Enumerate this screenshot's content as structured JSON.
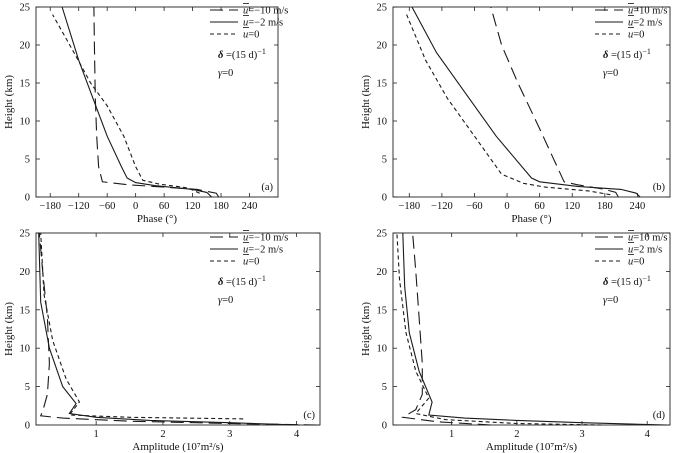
{
  "styles": {
    "line_color": "#1a1a1a",
    "dash_patterns": {
      "long-dash": "13,6",
      "solid": "",
      "short-dash": "4,3"
    }
  },
  "chart_data": [
    {
      "panel": "(a)",
      "type": "line",
      "xlabel": "Phase (°)",
      "ylabel": "Height (km)",
      "xlim": [
        -210,
        300
      ],
      "ylim": [
        0,
        25
      ],
      "xticks": [
        -180,
        -120,
        -60,
        0,
        60,
        120,
        180,
        240
      ],
      "yticks": [
        0,
        5,
        10,
        15,
        20,
        25
      ],
      "legend": [
        {
          "prefix": "u",
          "text": "=−10  m/s",
          "style": "long-dash"
        },
        {
          "prefix": "u",
          "text": "=−2  m/s",
          "style": "solid"
        },
        {
          "prefix": "u",
          "text": "=0",
          "style": "short-dash"
        }
      ],
      "params": {
        "delta": "=(15  d)",
        "delta_exp": "−1",
        "gamma": "=0"
      },
      "series": [
        {
          "style": "long-dash",
          "points": [
            [
              175,
              0
            ],
            [
              170,
              0.5
            ],
            [
              130,
              1
            ],
            [
              60,
              1.3
            ],
            [
              -15,
              1.6
            ],
            [
              -70,
              2
            ],
            [
              -78,
              4
            ],
            [
              -82,
              8
            ],
            [
              -85,
              13
            ],
            [
              -87,
              20
            ],
            [
              -88,
              25
            ]
          ]
        },
        {
          "style": "solid",
          "points": [
            [
              160,
              0
            ],
            [
              150,
              0.6
            ],
            [
              120,
              1
            ],
            [
              40,
              1.5
            ],
            [
              0,
              1.9
            ],
            [
              -18,
              2.5
            ],
            [
              -30,
              4
            ],
            [
              -60,
              8
            ],
            [
              -90,
              13
            ],
            [
              -120,
              18
            ],
            [
              -155,
              25
            ]
          ]
        },
        {
          "style": "short-dash",
          "points": [
            [
              135,
              0.5
            ],
            [
              110,
              1.2
            ],
            [
              50,
              1.7
            ],
            [
              15,
              2.2
            ],
            [
              0,
              4
            ],
            [
              -25,
              8
            ],
            [
              -60,
              12
            ],
            [
              -95,
              15
            ],
            [
              -130,
              19
            ],
            [
              -175,
              24
            ]
          ]
        }
      ]
    },
    {
      "panel": "(b)",
      "type": "line",
      "xlabel": "Phase (°)",
      "ylabel": "Height (km)",
      "xlim": [
        -210,
        300
      ],
      "ylim": [
        0,
        25
      ],
      "xticks": [
        -180,
        -120,
        -60,
        0,
        60,
        120,
        180,
        240
      ],
      "yticks": [
        0,
        5,
        10,
        15,
        20,
        25
      ],
      "legend": [
        {
          "prefix": "u",
          "text": "=10  m/s",
          "style": "long-dash"
        },
        {
          "prefix": "u",
          "text": "=2  m/s",
          "style": "solid"
        },
        {
          "prefix": "u",
          "text": "=0",
          "style": "short-dash"
        }
      ],
      "params": {
        "delta": "=(15  d)",
        "delta_exp": "−1",
        "gamma": "=0"
      },
      "series": [
        {
          "style": "long-dash",
          "points": [
            [
              205,
              0
            ],
            [
              200,
              0.6
            ],
            [
              180,
              1
            ],
            [
              130,
              1.6
            ],
            [
              105,
              2
            ],
            [
              60,
              9
            ],
            [
              20,
              15
            ],
            [
              -10,
              20
            ],
            [
              -30,
              25
            ]
          ]
        },
        {
          "style": "solid",
          "points": [
            [
              245,
              0
            ],
            [
              238,
              0.5
            ],
            [
              210,
              1
            ],
            [
              130,
              1.4
            ],
            [
              60,
              2
            ],
            [
              45,
              2.5
            ],
            [
              -20,
              8
            ],
            [
              -80,
              14
            ],
            [
              -130,
              19
            ],
            [
              -175,
              25
            ]
          ]
        },
        {
          "style": "short-dash",
          "points": [
            [
              190,
              0.3
            ],
            [
              150,
              0.8
            ],
            [
              70,
              1.3
            ],
            [
              30,
              1.8
            ],
            [
              -10,
              3
            ],
            [
              -60,
              8
            ],
            [
              -110,
              13
            ],
            [
              -150,
              18
            ],
            [
              -185,
              24
            ]
          ]
        }
      ]
    },
    {
      "panel": "(c)",
      "type": "line",
      "xlabel": "Amplitude (10⁷m²/s)",
      "ylabel": "Height (km)",
      "xlim": [
        0.1,
        4.35
      ],
      "ylim": [
        0,
        25
      ],
      "xticks": [
        1,
        2,
        3,
        4
      ],
      "yticks": [
        0,
        5,
        10,
        15,
        20,
        25
      ],
      "legend": [
        {
          "prefix": "u",
          "text": "=−10  m/s",
          "style": "long-dash"
        },
        {
          "prefix": "u",
          "text": "=−2  m/s",
          "style": "solid"
        },
        {
          "prefix": "u",
          "text": "=0",
          "style": "short-dash"
        }
      ],
      "params": {
        "delta": "=(15  d)",
        "delta_exp": "−1",
        "gamma": "=0"
      },
      "series": [
        {
          "style": "long-dash",
          "points": [
            [
              4.3,
              0
            ],
            [
              3.0,
              0.2
            ],
            [
              1.5,
              0.5
            ],
            [
              0.5,
              0.9
            ],
            [
              0.17,
              1.2
            ],
            [
              0.2,
              1.8
            ],
            [
              0.27,
              4
            ],
            [
              0.3,
              8
            ],
            [
              0.27,
              14
            ],
            [
              0.2,
              20
            ],
            [
              0.15,
              25
            ]
          ]
        },
        {
          "style": "solid",
          "points": [
            [
              4.05,
              0
            ],
            [
              3,
              0.3
            ],
            [
              1.8,
              0.6
            ],
            [
              1.0,
              1.0
            ],
            [
              0.6,
              1.5
            ],
            [
              0.7,
              2.8
            ],
            [
              0.5,
              5
            ],
            [
              0.3,
              10
            ],
            [
              0.17,
              16
            ],
            [
              0.14,
              25
            ]
          ]
        },
        {
          "style": "short-dash",
          "points": [
            [
              3.2,
              0.8
            ],
            [
              1.5,
              1.0
            ],
            [
              0.6,
              1.3
            ],
            [
              0.75,
              3
            ],
            [
              0.55,
              6
            ],
            [
              0.35,
              11
            ],
            [
              0.22,
              17
            ],
            [
              0.17,
              25
            ]
          ]
        }
      ]
    },
    {
      "panel": "(d)",
      "type": "line",
      "xlabel": "Amplitude (10⁷m²/s)",
      "ylabel": "Height (km)",
      "xlim": [
        0.1,
        4.35
      ],
      "ylim": [
        0,
        25
      ],
      "xticks": [
        1,
        2,
        3,
        4
      ],
      "yticks": [
        0,
        5,
        10,
        15,
        20,
        25
      ],
      "legend": [
        {
          "prefix": "u",
          "text": "=10  m/s",
          "style": "long-dash"
        },
        {
          "prefix": "u",
          "text": "=2  m/s",
          "style": "solid"
        },
        {
          "prefix": "u",
          "text": "=0",
          "style": "short-dash"
        }
      ],
      "params": {
        "delta": "=(15  d)",
        "delta_exp": "−1",
        "gamma": "=0"
      },
      "series": [
        {
          "style": "long-dash",
          "points": [
            [
              1.6,
              0
            ],
            [
              0.8,
              0.4
            ],
            [
              0.25,
              1.0
            ],
            [
              0.45,
              2
            ],
            [
              0.55,
              4
            ],
            [
              0.55,
              8
            ],
            [
              0.5,
              14
            ],
            [
              0.45,
              20
            ],
            [
              0.4,
              25
            ]
          ]
        },
        {
          "style": "solid",
          "points": [
            [
              4.3,
              0
            ],
            [
              3,
              0.3
            ],
            [
              2,
              0.6
            ],
            [
              1.2,
              0.9
            ],
            [
              0.65,
              1.3
            ],
            [
              0.7,
              3
            ],
            [
              0.5,
              7
            ],
            [
              0.35,
              12
            ],
            [
              0.28,
              18
            ],
            [
              0.25,
              25
            ]
          ]
        },
        {
          "style": "short-dash",
          "points": [
            [
              3.3,
              0
            ],
            [
              2.0,
              0.2
            ],
            [
              0.9,
              0.7
            ],
            [
              0.45,
              1.5
            ],
            [
              0.65,
              3.5
            ],
            [
              0.45,
              7
            ],
            [
              0.3,
              12
            ],
            [
              0.2,
              19
            ],
            [
              0.16,
              25
            ]
          ]
        }
      ]
    }
  ]
}
